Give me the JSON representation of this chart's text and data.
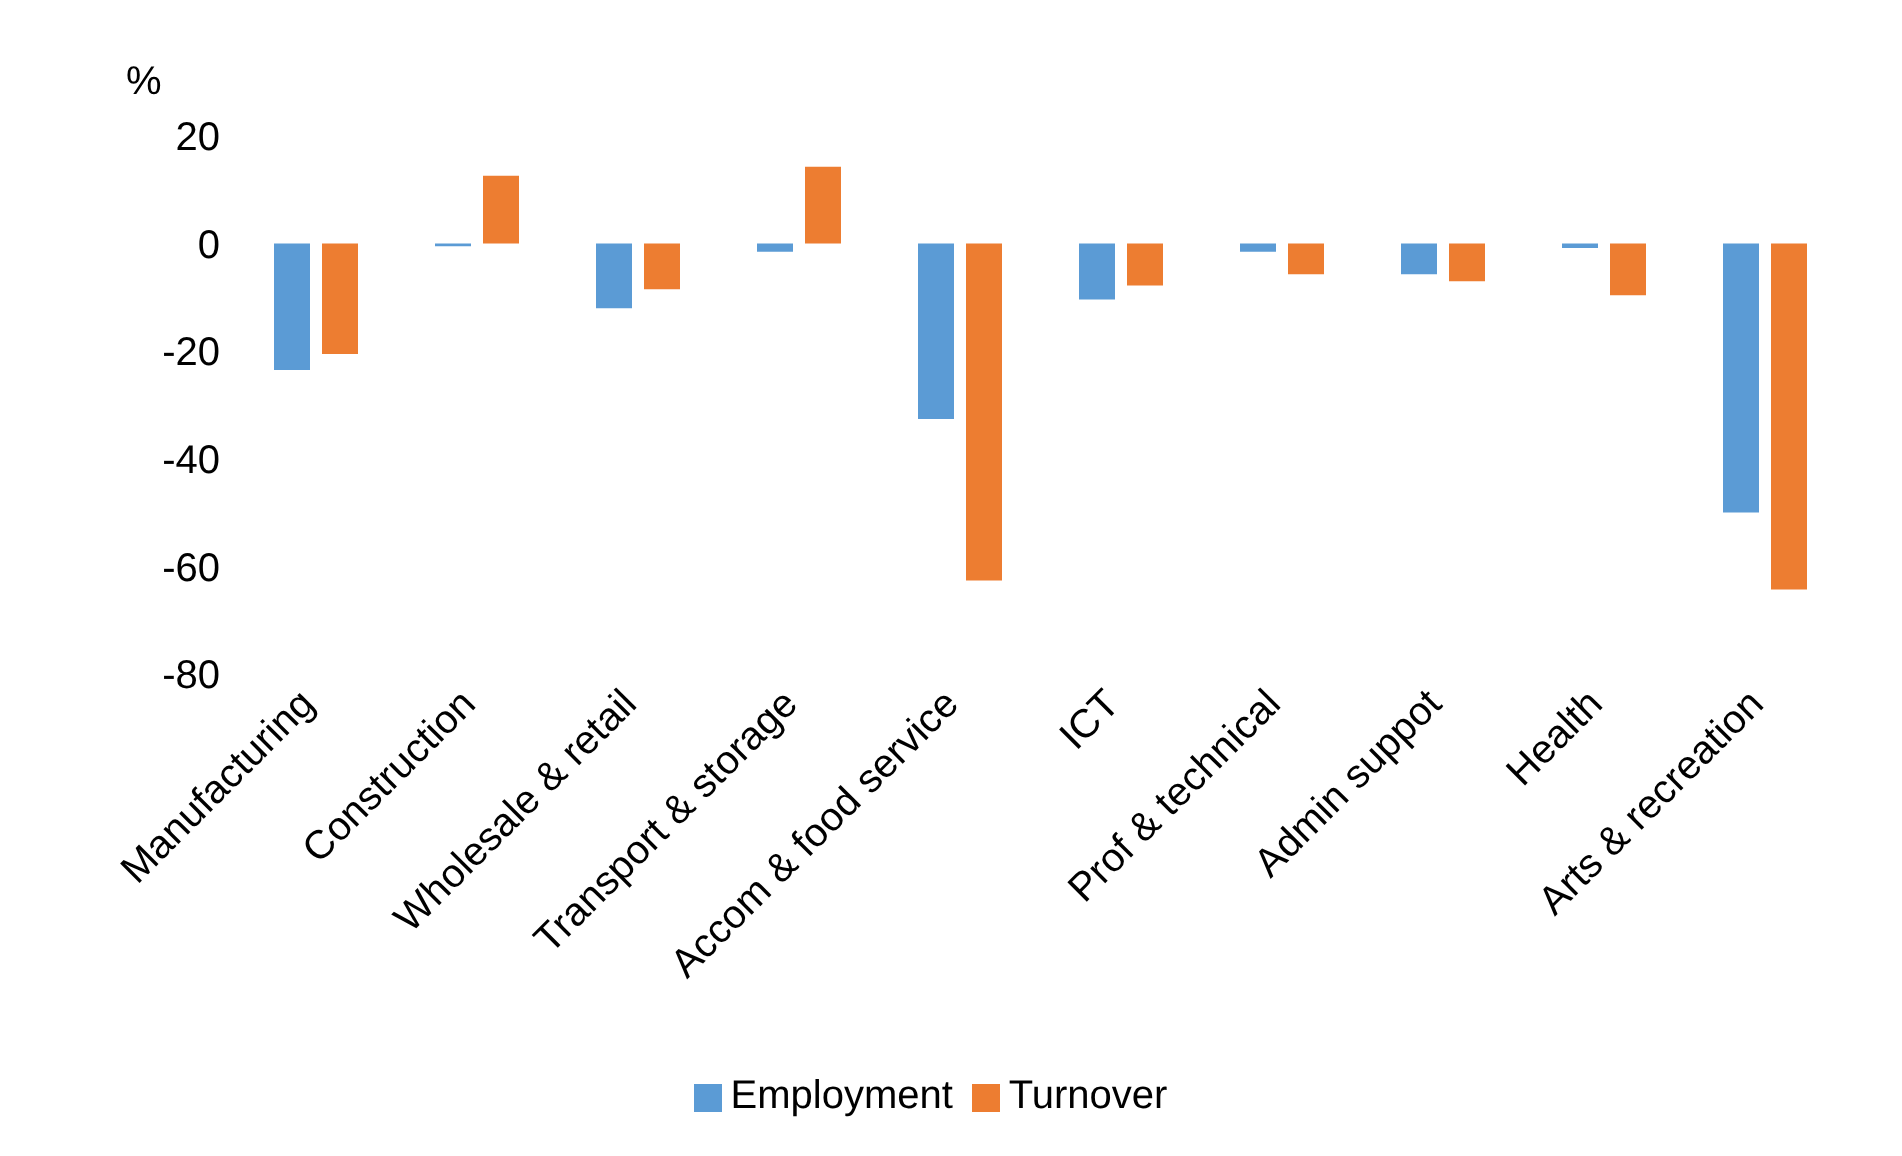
{
  "chart_data": {
    "type": "bar",
    "ylabel": "%",
    "categories": [
      "Manufacturing",
      "Construction",
      "Wholesale & retail",
      "Transport & storage",
      "Accom & food service",
      "ICT",
      "Prof & technical",
      "Admin suppot",
      "Health",
      "Arts & recreation"
    ],
    "series": [
      {
        "name": "Employment",
        "color": "#5b9bd5",
        "values": [
          -23.5,
          -0.5,
          -12,
          -1.5,
          -32.6,
          -10.4,
          -1.5,
          -5.7,
          -0.8,
          -50
        ]
      },
      {
        "name": "Turnover",
        "color": "#ed7d31",
        "values": [
          -20.5,
          12.6,
          -8.5,
          14.3,
          -62.6,
          -7.8,
          -5.7,
          -7,
          -9.6,
          -64.3
        ]
      }
    ],
    "ylim": [
      -80,
      20
    ],
    "yticks": [
      -80,
      -60,
      -40,
      -20,
      0,
      20
    ],
    "legend": "bottom"
  }
}
